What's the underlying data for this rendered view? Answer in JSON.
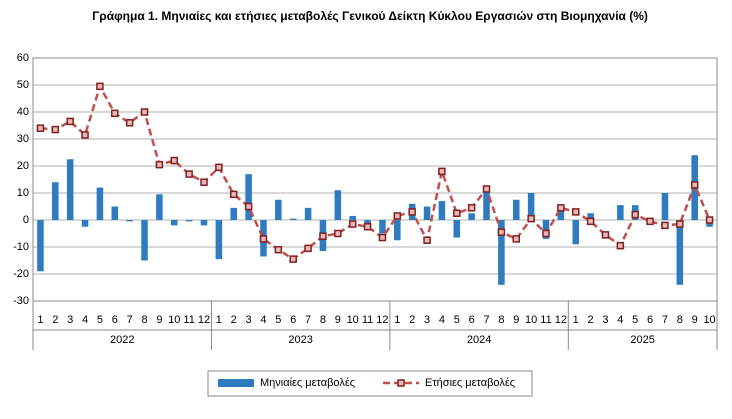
{
  "chart_data": {
    "type": "bar-line",
    "title": "Γράφημα 1. Μηνιαίες και ετήσιες μεταβολές  Γενικού Δείκτη Κύκλου Εργασιών στη Βιομηχανία (%)",
    "groups": [
      {
        "name": "2022",
        "categories": [
          "1",
          "2",
          "3",
          "4",
          "5",
          "6",
          "7",
          "8",
          "9",
          "10",
          "11",
          "12"
        ]
      },
      {
        "name": "2023",
        "categories": [
          "1",
          "2",
          "3",
          "4",
          "5",
          "6",
          "7",
          "8",
          "9",
          "10",
          "11",
          "12"
        ]
      },
      {
        "name": "2024",
        "categories": [
          "1",
          "2",
          "3",
          "4",
          "5",
          "6",
          "7",
          "8",
          "9",
          "10",
          "11",
          "12"
        ]
      },
      {
        "name": "2025",
        "categories": [
          "1",
          "2",
          "3",
          "4",
          "5",
          "6",
          "7",
          "8",
          "9",
          "10"
        ]
      }
    ],
    "series": [
      {
        "name": "Μηνιαίες μεταβολές",
        "kind": "bar",
        "color": "#2e7bc0",
        "values": [
          -19,
          14,
          22.5,
          -2.5,
          12,
          5,
          -0.5,
          -15,
          9.5,
          -2,
          -0.5,
          -2,
          -14.5,
          4.5,
          17,
          -13.5,
          7.5,
          0.5,
          4.5,
          -11.5,
          11,
          1.5,
          -3,
          -5,
          -7.5,
          6,
          5,
          7,
          -6.5,
          2.5,
          11,
          -24,
          7.5,
          10,
          -7,
          4,
          -9,
          2.5,
          0,
          5.5,
          5.5,
          0,
          10,
          -24,
          24,
          -2.5
        ]
      },
      {
        "name": "Ετήσιες μεταβολές",
        "kind": "line",
        "color": "#c0504d",
        "marker_color": "#7f2020",
        "values": [
          34,
          33.5,
          36.5,
          31.5,
          49.5,
          39.5,
          36,
          40,
          20.5,
          22,
          17,
          14,
          19.5,
          9.5,
          5,
          -7,
          -11,
          -14.5,
          -10.5,
          -6,
          -5,
          -1.5,
          -2.5,
          -6.5,
          1.5,
          3,
          -7.5,
          18,
          2.5,
          4.5,
          11.5,
          -4.5,
          -7,
          0.5,
          -5,
          4.5,
          3,
          -0.5,
          -5.5,
          -9.5,
          2,
          -0.5,
          -2,
          -1.5,
          13,
          0
        ]
      }
    ],
    "ylim": [
      -30,
      60
    ],
    "yticks": [
      -30,
      -20,
      -10,
      0,
      10,
      20,
      30,
      40,
      50,
      60
    ],
    "grid": true
  }
}
